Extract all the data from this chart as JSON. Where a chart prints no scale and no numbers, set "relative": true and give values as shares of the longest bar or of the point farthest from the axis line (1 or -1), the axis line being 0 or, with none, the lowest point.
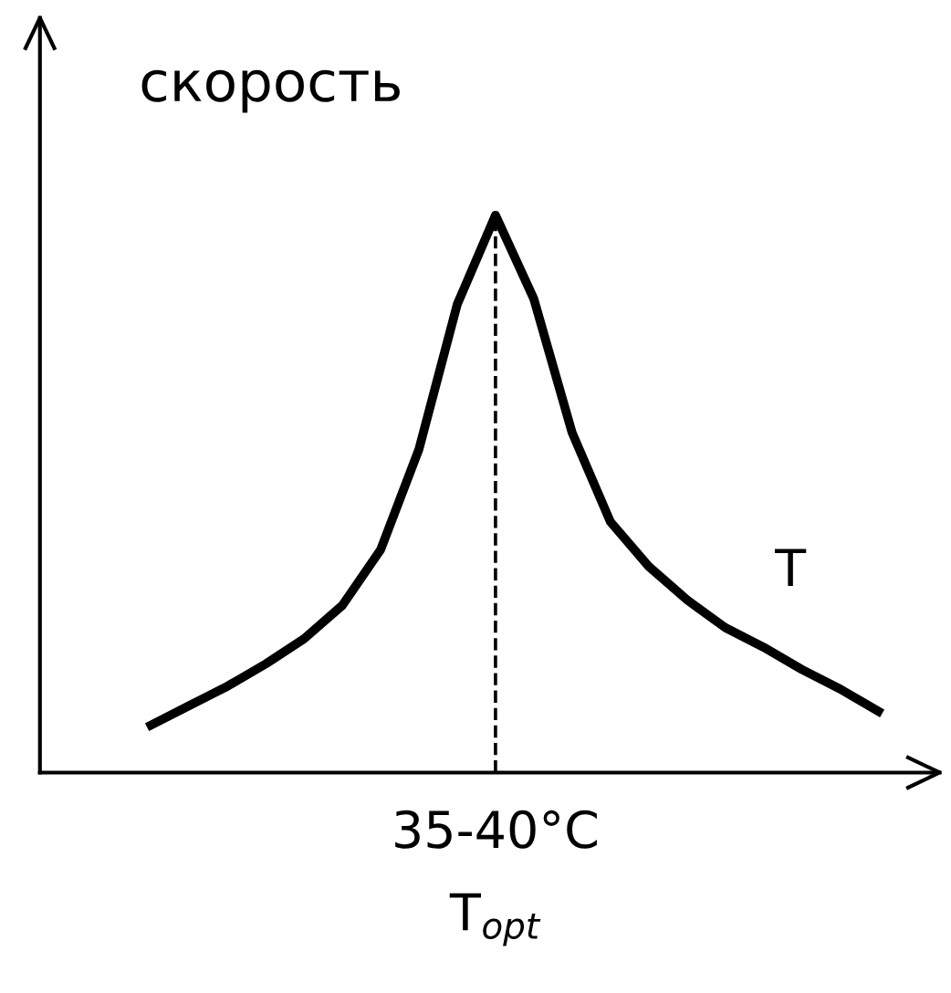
{
  "chart_data": {
    "type": "line",
    "relative": true,
    "ylabel": "скорость",
    "xlabel": "T$_{opt}$",
    "categories": [
      null,
      null,
      null,
      null,
      null,
      null,
      null,
      null,
      null,
      null,
      null,
      null,
      null,
      null,
      null,
      null,
      null,
      null,
      null,
      null
    ],
    "series": [
      {
        "name": "T",
        "color": "#000000",
        "values": [
          0.085,
          0.12,
          0.155,
          0.195,
          0.24,
          0.3,
          0.4,
          0.58,
          0.84,
          1,
          0.85,
          0.61,
          0.45,
          0.37,
          0.31,
          0.26,
          0.225,
          0.185,
          0.15,
          0.11
        ]
      }
    ],
    "annotations": [
      "35-40°C"
    ],
    "line_style": "solid",
    "marker": "none",
    "grid": false,
    "legend": false
  }
}
